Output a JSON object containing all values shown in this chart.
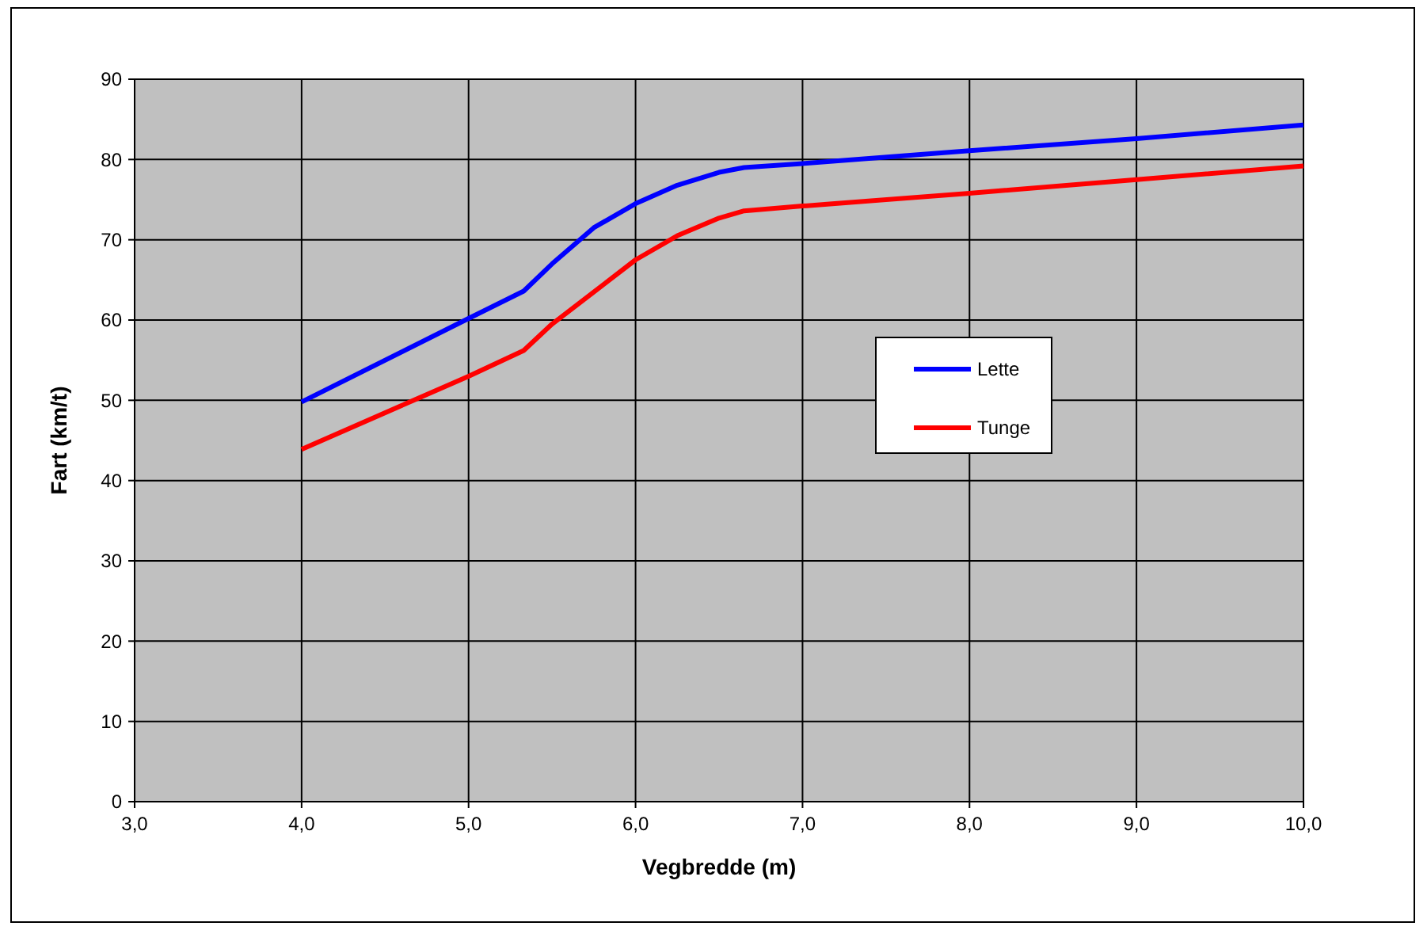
{
  "chart_data": {
    "type": "line",
    "xlabel": "Vegbredde (m)",
    "ylabel": "Fart (km/t)",
    "xlim": [
      3,
      10
    ],
    "xticks": [
      {
        "value": 3,
        "label": "3,0"
      },
      {
        "value": 4,
        "label": "4,0"
      },
      {
        "value": 5,
        "label": "5,0"
      },
      {
        "value": 6,
        "label": "6,0"
      },
      {
        "value": 7,
        "label": "7,0"
      },
      {
        "value": 8,
        "label": "8,0"
      },
      {
        "value": 9,
        "label": "9,0"
      },
      {
        "value": 10,
        "label": "10,0"
      }
    ],
    "ylim": [
      0,
      90
    ],
    "yticks": [
      0,
      10,
      20,
      30,
      40,
      50,
      60,
      70,
      80,
      90
    ],
    "grid": true,
    "legend": "right",
    "marker": "none",
    "line_style": "solid",
    "x": [
      4,
      5,
      5.33,
      5.5,
      5.75,
      6,
      6.25,
      6.5,
      6.65,
      7,
      8,
      9,
      10
    ],
    "series": [
      {
        "name": "Lette",
        "color": "#0000ff",
        "values": [
          49.8,
          60.2,
          63.6,
          67,
          71.5,
          74.5,
          76.8,
          78.4,
          79,
          79.5,
          81.1,
          82.6,
          84.3
        ]
      },
      {
        "name": "Tunge",
        "color": "#ff0000",
        "values": [
          43.9,
          53,
          56.2,
          59.5,
          63.5,
          67.5,
          70.5,
          72.7,
          73.6,
          74.2,
          75.8,
          77.5,
          79.2
        ]
      }
    ]
  }
}
